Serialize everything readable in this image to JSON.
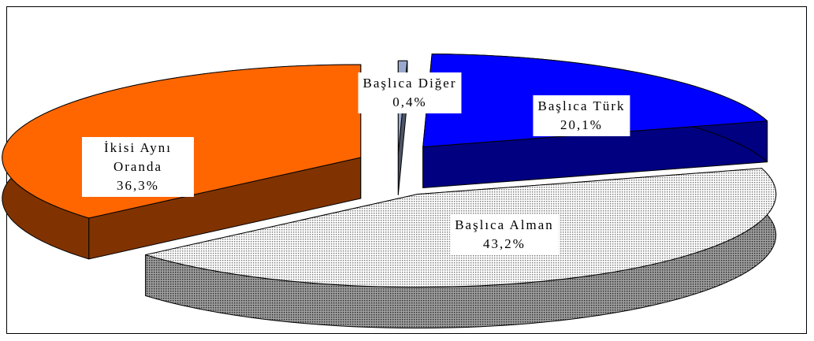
{
  "chart_data": {
    "type": "pie3d",
    "categories": [
      "Başlıca Diğer",
      "Başlıca Türk",
      "Başlıca Alman",
      "İkisi Aynı Oranda"
    ],
    "values": [
      0.4,
      20.1,
      43.2,
      36.3
    ],
    "value_labels": [
      "0,4%",
      "20,1%",
      "43,2%",
      "36,3%"
    ],
    "colors": [
      "#99a8cc",
      "#0000ff",
      "#c0c0c0",
      "#ff6600"
    ],
    "side_colors": [
      "#4d5566",
      "#000080",
      "#6e6e6e",
      "#803300"
    ]
  }
}
